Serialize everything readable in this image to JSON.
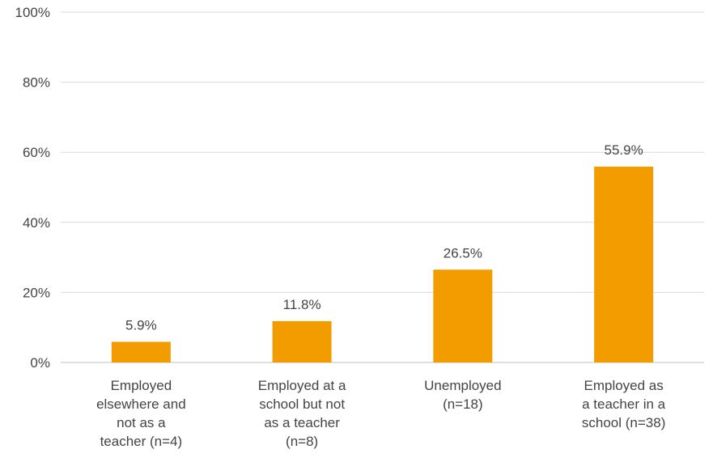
{
  "chart_data": {
    "type": "bar",
    "title": "",
    "xlabel": "",
    "ylabel": "",
    "categories": [
      [
        "Employed",
        "elsewhere and",
        "not as a",
        "teacher (n=4)"
      ],
      [
        "Employed at a",
        "school but not",
        "as a teacher",
        "(n=8)"
      ],
      [
        "Unemployed",
        "(n=18)"
      ],
      [
        "Employed as",
        "a teacher in a",
        "school (n=38)"
      ]
    ],
    "values": [
      5.9,
      11.8,
      26.5,
      55.9
    ],
    "value_labels": [
      "5.9%",
      "11.8%",
      "26.5%",
      "55.9%"
    ],
    "ylim": [
      0,
      100
    ],
    "y_ticks": [
      0,
      20,
      40,
      60,
      80,
      100
    ],
    "y_tick_labels": [
      "0%",
      "20%",
      "40%",
      "60%",
      "80%",
      "100%"
    ],
    "grid": true,
    "legend": "none",
    "colors": {
      "bar": "#F39C00",
      "grid": "#D9D9D9",
      "axis": "#BFBFBF",
      "text": "#444444"
    }
  }
}
